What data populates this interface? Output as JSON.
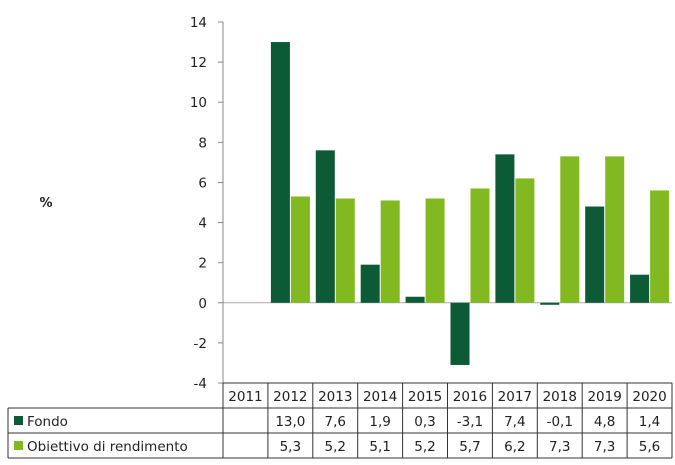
{
  "chart_data": {
    "type": "bar",
    "ylabel": "%",
    "ylim": [
      -4,
      14
    ],
    "yticks": [
      14,
      12,
      10,
      8,
      6,
      4,
      2,
      0,
      -2,
      -4
    ],
    "categories": [
      "2011",
      "2012",
      "2013",
      "2014",
      "2015",
      "2016",
      "2017",
      "2018",
      "2019",
      "2020"
    ],
    "series": [
      {
        "name": "Fondo",
        "color": "#0c5a36",
        "values": [
          null,
          13.0,
          7.6,
          1.9,
          0.3,
          -3.1,
          7.4,
          -0.1,
          4.8,
          1.4
        ],
        "labels": [
          "",
          "13,0",
          "7,6",
          "1,9",
          "0,3",
          "-3,1",
          "7,4",
          "-0,1",
          "4,8",
          "1,4"
        ]
      },
      {
        "name": "Obiettivo di rendimento",
        "color": "#82b920",
        "values": [
          null,
          5.3,
          5.2,
          5.1,
          5.2,
          5.7,
          6.2,
          7.3,
          7.3,
          5.6
        ],
        "labels": [
          "",
          "5,3",
          "5,2",
          "5,1",
          "5,2",
          "5,7",
          "6,2",
          "7,3",
          "7,3",
          "5,6"
        ]
      }
    ],
    "legend": "table-below",
    "grid": false
  }
}
